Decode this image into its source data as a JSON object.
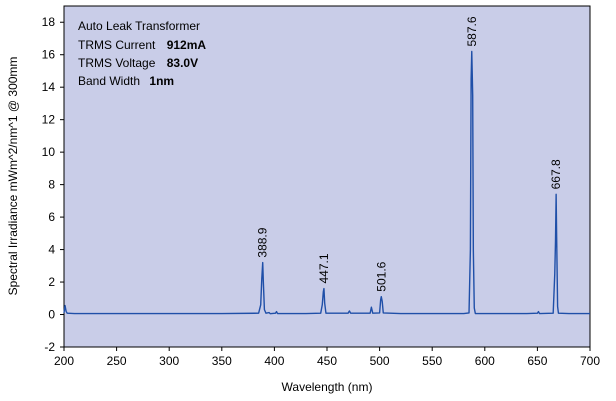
{
  "chart_data": {
    "type": "line",
    "title": "",
    "xlabel": "Wavelength (nm)",
    "ylabel": "Spectral Irradiance mWm^2/nm^1 @ 300mm",
    "xlim": [
      200,
      700
    ],
    "ylim": [
      -2,
      19
    ],
    "xticks": [
      200,
      250,
      300,
      350,
      400,
      450,
      500,
      550,
      600,
      650,
      700
    ],
    "yticks": [
      -2,
      0,
      2,
      4,
      6,
      8,
      10,
      12,
      14,
      16,
      18
    ],
    "grid": false,
    "colors": {
      "plot_bg": "#c9cde8",
      "line": "#1f4fa8"
    },
    "annotation": [
      {
        "label": "Auto Leak Transformer",
        "value": ""
      },
      {
        "label": "TRMS Current",
        "value": "912mA"
      },
      {
        "label": "TRMS Voltage",
        "value": "83.0V"
      },
      {
        "label": "Band Width",
        "value": "1nm"
      }
    ],
    "peaks": [
      {
        "x": 388.9,
        "y": 3.2,
        "label": "388.9"
      },
      {
        "x": 447.1,
        "y": 1.6,
        "label": "447.1"
      },
      {
        "x": 501.6,
        "y": 1.1,
        "label": "501.6"
      },
      {
        "x": 587.6,
        "y": 16.2,
        "label": "587.6"
      },
      {
        "x": 667.8,
        "y": 7.4,
        "label": "667.8"
      }
    ],
    "series": [
      {
        "values": [
          [
            200,
            0.1
          ],
          [
            201,
            0.55
          ],
          [
            202,
            0.2
          ],
          [
            203,
            0.08
          ],
          [
            210,
            0.06
          ],
          [
            250,
            0.06
          ],
          [
            300,
            0.06
          ],
          [
            350,
            0.06
          ],
          [
            385,
            0.08
          ],
          [
            387,
            0.6
          ],
          [
            388,
            2.2
          ],
          [
            388.9,
            3.2
          ],
          [
            389.5,
            2.0
          ],
          [
            390.5,
            0.3
          ],
          [
            392,
            0.08
          ],
          [
            395,
            0.12
          ],
          [
            396,
            0.05
          ],
          [
            401,
            0.08
          ],
          [
            402,
            0.18
          ],
          [
            403,
            0.06
          ],
          [
            430,
            0.06
          ],
          [
            444,
            0.08
          ],
          [
            445.5,
            0.6
          ],
          [
            446.5,
            1.4
          ],
          [
            447.1,
            1.6
          ],
          [
            447.8,
            0.7
          ],
          [
            449,
            0.08
          ],
          [
            470,
            0.08
          ],
          [
            471.3,
            0.22
          ],
          [
            472.5,
            0.08
          ],
          [
            491,
            0.08
          ],
          [
            492.2,
            0.45
          ],
          [
            493.5,
            0.08
          ],
          [
            500,
            0.1
          ],
          [
            501,
            0.9
          ],
          [
            501.6,
            1.1
          ],
          [
            502.5,
            0.8
          ],
          [
            503.5,
            0.1
          ],
          [
            520,
            0.06
          ],
          [
            580,
            0.06
          ],
          [
            585,
            0.1
          ],
          [
            586.3,
            4.0
          ],
          [
            587.0,
            14.5
          ],
          [
            587.6,
            16.2
          ],
          [
            588.0,
            15.0
          ],
          [
            588.5,
            13.5
          ],
          [
            589.1,
            4.0
          ],
          [
            590.0,
            0.4
          ],
          [
            591,
            0.06
          ],
          [
            640,
            0.06
          ],
          [
            650,
            0.08
          ],
          [
            651,
            0.18
          ],
          [
            652,
            0.06
          ],
          [
            665,
            0.08
          ],
          [
            666.5,
            2.5
          ],
          [
            667.2,
            4.5
          ],
          [
            667.8,
            7.4
          ],
          [
            668.3,
            4.8
          ],
          [
            669.2,
            0.5
          ],
          [
            670,
            0.08
          ],
          [
            680,
            0.06
          ],
          [
            700,
            0.06
          ]
        ]
      }
    ]
  }
}
